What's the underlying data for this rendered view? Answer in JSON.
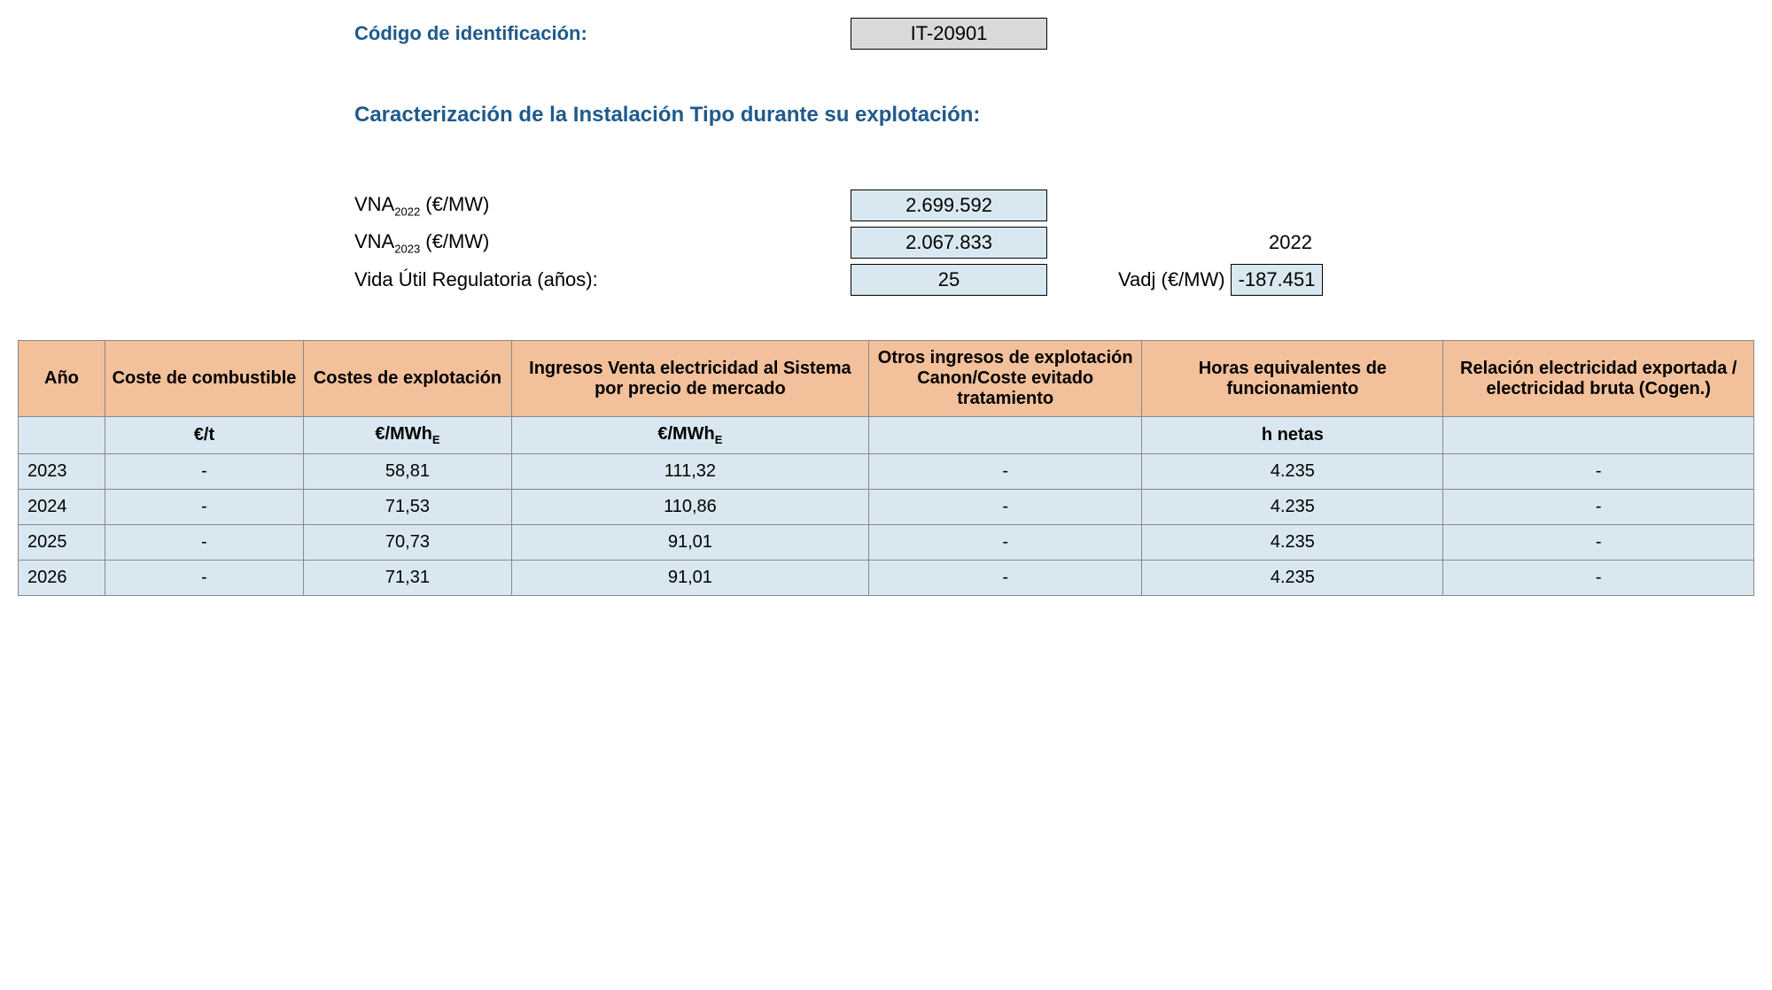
{
  "header": {
    "id_label": "Código de identificación:",
    "id_value": "IT-20901",
    "section_title": "Caracterización de la Instalación Tipo durante su explotación:",
    "vna2022_label_pre": "VNA",
    "vna2022_label_sub": "2022",
    "vna_unit": " (€/MW)",
    "vna2022_value": "2.699.592",
    "vna2023_label_pre": "VNA",
    "vna2023_label_sub": "2023",
    "vna2023_value": "2.067.833",
    "side_year": "2022",
    "vida_label": "Vida Útil Regulatoria (años):",
    "vida_value": "25",
    "vadj_label": "Vadj (€/MW)",
    "vadj_value": "-187.451"
  },
  "table": {
    "columns": {
      "ano": "Año",
      "combustible": "Coste de combustible",
      "explotacion": "Costes de explotación",
      "ingresos": "Ingresos Venta electricidad al Sistema por precio de mercado",
      "otros": "Otros ingresos de explotación Canon/Coste evitado tratamiento",
      "horas": "Horas equivalentes de funcionamiento",
      "relacion": "Relación electricidad exportada / electricidad bruta (Cogen.)"
    },
    "units": {
      "ano": "",
      "combustible": "€/t",
      "explotacion_pre": "€/MWh",
      "ingresos_pre": "€/MWh",
      "sub_e": "E",
      "otros": "",
      "horas": "h netas",
      "relacion": ""
    },
    "rows": [
      {
        "ano": "2023",
        "combustible": "-",
        "explotacion": "58,81",
        "ingresos": "111,32",
        "otros": "-",
        "horas": "4.235",
        "relacion": "-"
      },
      {
        "ano": "2024",
        "combustible": "-",
        "explotacion": "71,53",
        "ingresos": "110,86",
        "otros": "-",
        "horas": "4.235",
        "relacion": "-"
      },
      {
        "ano": "2025",
        "combustible": "-",
        "explotacion": "70,73",
        "ingresos": "91,01",
        "otros": "-",
        "horas": "4.235",
        "relacion": "-"
      },
      {
        "ano": "2026",
        "combustible": "-",
        "explotacion": "71,31",
        "ingresos": "91,01",
        "otros": "-",
        "horas": "4.235",
        "relacion": "-"
      }
    ]
  },
  "colors": {
    "heading": "#1f5a8c",
    "header_bg": "#f2c09a",
    "cell_bg": "#d9e8f0",
    "id_bg": "#d9d9d9",
    "border": "#888888"
  }
}
